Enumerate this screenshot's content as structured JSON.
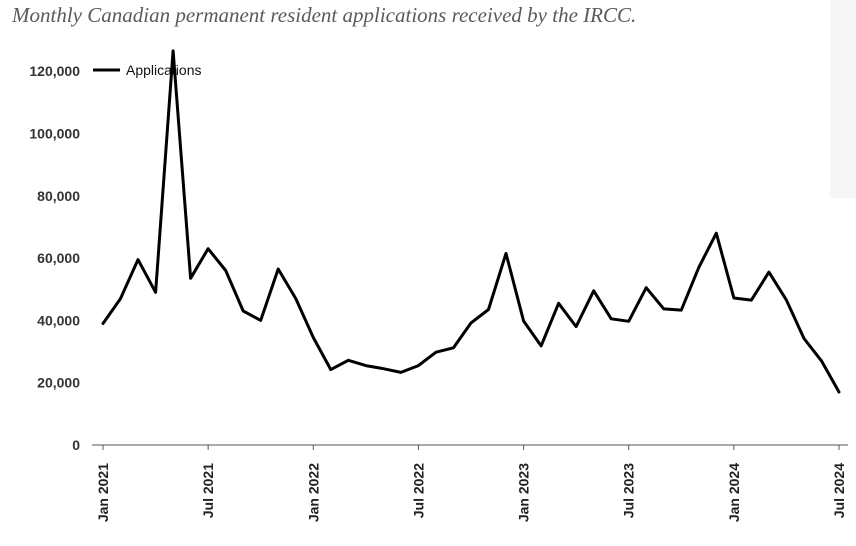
{
  "title": "Monthly Canadian permanent resident applications received by the IRCC.",
  "colors": {
    "line": "#000000",
    "axis": "#555555",
    "side_panel": "#f6f6f6"
  },
  "chart_data": {
    "type": "line",
    "title": "Monthly Canadian permanent resident applications received by the IRCC.",
    "xlabel": "",
    "ylabel": "",
    "ylim": [
      0,
      130000
    ],
    "y_ticks": [
      0,
      20000,
      40000,
      60000,
      80000,
      100000,
      120000
    ],
    "y_tick_labels": [
      "0",
      "20,000",
      "40,000",
      "60,000",
      "80,000",
      "100,000",
      "120,000"
    ],
    "x_tick_labels": [
      "Jan 2021",
      "Jul 2021",
      "Jan 2022",
      "Jul 2022",
      "Jan 2023",
      "Jul 2023",
      "Jan 2024",
      "Jul 2024"
    ],
    "x_tick_index": [
      0,
      6,
      12,
      18,
      24,
      30,
      36,
      42
    ],
    "grid": false,
    "legend": "top-left",
    "x": [
      "Jan 2021",
      "Feb 2021",
      "Mar 2021",
      "Apr 2021",
      "May 2021",
      "Jun 2021",
      "Jul 2021",
      "Aug 2021",
      "Sep 2021",
      "Oct 2021",
      "Nov 2021",
      "Dec 2021",
      "Jan 2022",
      "Feb 2022",
      "Mar 2022",
      "Apr 2022",
      "May 2022",
      "Jun 2022",
      "Jul 2022",
      "Aug 2022",
      "Sep 2022",
      "Oct 2022",
      "Nov 2022",
      "Dec 2022",
      "Jan 2023",
      "Feb 2023",
      "Mar 2023",
      "Apr 2023",
      "May 2023",
      "Jun 2023",
      "Jul 2023",
      "Aug 2023",
      "Sep 2023",
      "Oct 2023",
      "Nov 2023",
      "Dec 2023",
      "Jan 2024",
      "Feb 2024",
      "Mar 2024",
      "Apr 2024",
      "May 2024",
      "Jun 2024",
      "Jul 2024"
    ],
    "series": [
      {
        "name": "Applications",
        "values": [
          39000,
          47000,
          59500,
          49000,
          126500,
          53500,
          63000,
          56000,
          43000,
          40000,
          56500,
          47000,
          34500,
          24200,
          27200,
          25500,
          24500,
          23300,
          25500,
          29800,
          31200,
          39200,
          43500,
          61500,
          39800,
          31800,
          45500,
          38000,
          49500,
          40500,
          39700,
          50500,
          43700,
          43300,
          57000,
          68000,
          47200,
          46500,
          55500,
          46500,
          34200,
          27000,
          17000
        ]
      }
    ]
  }
}
